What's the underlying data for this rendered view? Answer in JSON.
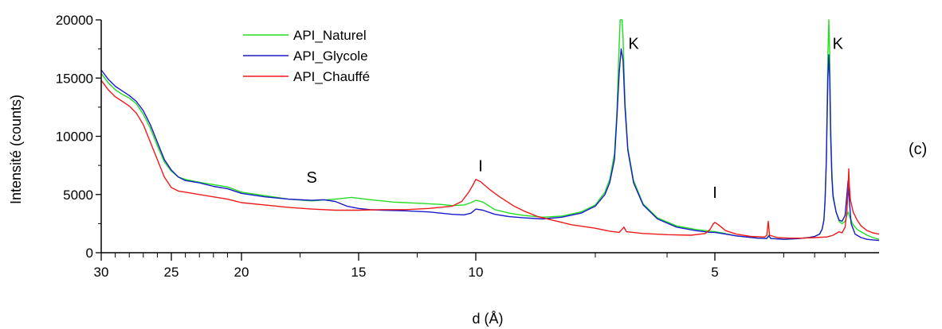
{
  "chart_data": {
    "type": "line",
    "xlabel": "d (Å)",
    "ylabel": "Intensité (counts)",
    "panel_label": "(c)",
    "x_axis": {
      "ticks": [
        30,
        25,
        20,
        15,
        10,
        5
      ],
      "tick_labels": [
        "30",
        "25",
        "20",
        "15",
        "10",
        "5"
      ],
      "reversed": true,
      "range_shown": [
        30,
        1.8
      ]
    },
    "y_axis": {
      "ylim": [
        0,
        20000
      ],
      "ticks": [
        0,
        5000,
        10000,
        15000,
        20000
      ],
      "tick_labels": [
        "0",
        "5000",
        "10000",
        "15000",
        "20000"
      ]
    },
    "grid": false,
    "legend_position": "top-center",
    "series": [
      {
        "name": "API_Naturel",
        "color": "#22dd22",
        "points": [
          [
            30,
            15400
          ],
          [
            29.5,
            14600
          ],
          [
            29,
            14000
          ],
          [
            28.5,
            13600
          ],
          [
            28,
            13300
          ],
          [
            27.5,
            12800
          ],
          [
            27,
            11900
          ],
          [
            26.5,
            10700
          ],
          [
            26,
            9200
          ],
          [
            25.5,
            7800
          ],
          [
            25,
            7000
          ],
          [
            24.5,
            6500
          ],
          [
            24,
            6300
          ],
          [
            23,
            6050
          ],
          [
            22,
            5850
          ],
          [
            21,
            5650
          ],
          [
            20,
            5200
          ],
          [
            19,
            4900
          ],
          [
            18,
            4600
          ],
          [
            17,
            4450
          ],
          [
            16,
            4600
          ],
          [
            15.3,
            4750
          ],
          [
            14.5,
            4550
          ],
          [
            13.5,
            4350
          ],
          [
            12.5,
            4250
          ],
          [
            11.5,
            4150
          ],
          [
            11,
            4050
          ],
          [
            10.5,
            4100
          ],
          [
            10.2,
            4300
          ],
          [
            10,
            4500
          ],
          [
            9.85,
            4350
          ],
          [
            9.6,
            3700
          ],
          [
            9.3,
            3400
          ],
          [
            9,
            3200
          ],
          [
            8.6,
            3050
          ],
          [
            8.2,
            3150
          ],
          [
            7.8,
            3500
          ],
          [
            7.5,
            4100
          ],
          [
            7.3,
            5200
          ],
          [
            7.2,
            6300
          ],
          [
            7.1,
            8500
          ],
          [
            7.05,
            12000
          ],
          [
            7.0,
            18000
          ],
          [
            6.98,
            20000
          ],
          [
            6.94,
            20000
          ],
          [
            6.92,
            18500
          ],
          [
            6.88,
            13000
          ],
          [
            6.82,
            9000
          ],
          [
            6.7,
            6200
          ],
          [
            6.5,
            4200
          ],
          [
            6.2,
            3000
          ],
          [
            5.8,
            2300
          ],
          [
            5.4,
            2000
          ],
          [
            5.1,
            1850
          ],
          [
            5.0,
            1800
          ],
          [
            4.9,
            1700
          ],
          [
            4.7,
            1450
          ],
          [
            4.4,
            1250
          ],
          [
            4.27,
            1220
          ],
          [
            4.24,
            1500
          ],
          [
            4.21,
            1220
          ],
          [
            4.0,
            1150
          ],
          [
            3.8,
            1200
          ],
          [
            3.6,
            1300
          ],
          [
            3.5,
            1400
          ],
          [
            3.42,
            1600
          ],
          [
            3.38,
            2000
          ],
          [
            3.35,
            2800
          ],
          [
            3.33,
            4500
          ],
          [
            3.31,
            8000
          ],
          [
            3.3,
            12000
          ],
          [
            3.285,
            17000
          ],
          [
            3.27,
            20000
          ],
          [
            3.255,
            17000
          ],
          [
            3.24,
            11000
          ],
          [
            3.22,
            7000
          ],
          [
            3.2,
            5000
          ],
          [
            3.15,
            3500
          ],
          [
            3.1,
            2700
          ],
          [
            3.05,
            2500
          ],
          [
            3.0,
            2700
          ],
          [
            2.97,
            3200
          ],
          [
            2.95,
            3500
          ],
          [
            2.92,
            3000
          ],
          [
            2.88,
            2400
          ],
          [
            2.84,
            2000
          ],
          [
            2.8,
            1800
          ],
          [
            2.74,
            1500
          ],
          [
            2.68,
            1300
          ],
          [
            2.62,
            1150
          ]
        ]
      },
      {
        "name": "API_Glycole",
        "color": "#1a1acc",
        "points": [
          [
            30,
            15700
          ],
          [
            29.5,
            14900
          ],
          [
            29,
            14300
          ],
          [
            28.5,
            13900
          ],
          [
            28,
            13500
          ],
          [
            27.5,
            13000
          ],
          [
            27,
            12200
          ],
          [
            26.5,
            11000
          ],
          [
            26,
            9500
          ],
          [
            25.5,
            8000
          ],
          [
            25,
            7100
          ],
          [
            24.5,
            6500
          ],
          [
            24,
            6200
          ],
          [
            23,
            6000
          ],
          [
            22,
            5700
          ],
          [
            21,
            5500
          ],
          [
            20,
            5100
          ],
          [
            19,
            4800
          ],
          [
            18,
            4600
          ],
          [
            17,
            4500
          ],
          [
            16.5,
            4550
          ],
          [
            16,
            4400
          ],
          [
            15.5,
            4000
          ],
          [
            15,
            3800
          ],
          [
            14.5,
            3700
          ],
          [
            14,
            3650
          ],
          [
            13,
            3600
          ],
          [
            12,
            3500
          ],
          [
            11,
            3300
          ],
          [
            10.5,
            3250
          ],
          [
            10.2,
            3400
          ],
          [
            10,
            3750
          ],
          [
            9.85,
            3650
          ],
          [
            9.6,
            3300
          ],
          [
            9.3,
            3100
          ],
          [
            9,
            3000
          ],
          [
            8.6,
            2900
          ],
          [
            8.2,
            3050
          ],
          [
            7.8,
            3400
          ],
          [
            7.5,
            4000
          ],
          [
            7.3,
            5000
          ],
          [
            7.2,
            6000
          ],
          [
            7.1,
            8000
          ],
          [
            7.05,
            11500
          ],
          [
            7.0,
            15500
          ],
          [
            6.96,
            17500
          ],
          [
            6.92,
            16500
          ],
          [
            6.88,
            12500
          ],
          [
            6.82,
            8800
          ],
          [
            6.7,
            6000
          ],
          [
            6.5,
            4100
          ],
          [
            6.2,
            2900
          ],
          [
            5.8,
            2200
          ],
          [
            5.4,
            1900
          ],
          [
            5.1,
            1750
          ],
          [
            5.0,
            1750
          ],
          [
            4.9,
            1650
          ],
          [
            4.7,
            1450
          ],
          [
            4.4,
            1250
          ],
          [
            4.27,
            1220
          ],
          [
            4.24,
            1450
          ],
          [
            4.21,
            1220
          ],
          [
            4.0,
            1150
          ],
          [
            3.8,
            1200
          ],
          [
            3.6,
            1300
          ],
          [
            3.5,
            1400
          ],
          [
            3.42,
            1600
          ],
          [
            3.38,
            2000
          ],
          [
            3.35,
            2800
          ],
          [
            3.33,
            4500
          ],
          [
            3.31,
            8000
          ],
          [
            3.3,
            11000
          ],
          [
            3.285,
            15000
          ],
          [
            3.27,
            17000
          ],
          [
            3.255,
            15000
          ],
          [
            3.24,
            10000
          ],
          [
            3.22,
            6500
          ],
          [
            3.2,
            4800
          ],
          [
            3.15,
            3500
          ],
          [
            3.1,
            2800
          ],
          [
            3.05,
            2700
          ],
          [
            3.0,
            3200
          ],
          [
            2.97,
            5000
          ],
          [
            2.95,
            6200
          ],
          [
            2.93,
            4500
          ],
          [
            2.9,
            2500
          ],
          [
            2.86,
            1600
          ],
          [
            2.8,
            1300
          ],
          [
            2.74,
            1150
          ],
          [
            2.68,
            1100
          ],
          [
            2.62,
            1050
          ]
        ]
      },
      {
        "name": "API_Chauffé",
        "color": "#ee1a1a",
        "points": [
          [
            30,
            14800
          ],
          [
            29.5,
            14000
          ],
          [
            29,
            13400
          ],
          [
            28.5,
            13000
          ],
          [
            28,
            12600
          ],
          [
            27.5,
            12000
          ],
          [
            27,
            11000
          ],
          [
            26.5,
            9500
          ],
          [
            26,
            8000
          ],
          [
            25.5,
            6500
          ],
          [
            25,
            5600
          ],
          [
            24.5,
            5300
          ],
          [
            24,
            5200
          ],
          [
            23,
            5000
          ],
          [
            22,
            4800
          ],
          [
            21,
            4600
          ],
          [
            20,
            4300
          ],
          [
            19,
            4100
          ],
          [
            18,
            3900
          ],
          [
            17,
            3750
          ],
          [
            16,
            3650
          ],
          [
            15,
            3650
          ],
          [
            14,
            3700
          ],
          [
            13,
            3700
          ],
          [
            12,
            3800
          ],
          [
            11,
            4000
          ],
          [
            10.6,
            4400
          ],
          [
            10.3,
            5200
          ],
          [
            10.1,
            5900
          ],
          [
            10,
            6300
          ],
          [
            9.9,
            6100
          ],
          [
            9.7,
            5400
          ],
          [
            9.5,
            4800
          ],
          [
            9.2,
            4000
          ],
          [
            9.0,
            3600
          ],
          [
            8.7,
            3100
          ],
          [
            8.3,
            2700
          ],
          [
            8.0,
            2400
          ],
          [
            7.5,
            2100
          ],
          [
            7.2,
            1850
          ],
          [
            7.0,
            1750
          ],
          [
            6.9,
            2200
          ],
          [
            6.85,
            1800
          ],
          [
            6.5,
            1650
          ],
          [
            6.0,
            1550
          ],
          [
            5.5,
            1500
          ],
          [
            5.2,
            1650
          ],
          [
            5.1,
            2000
          ],
          [
            5.03,
            2500
          ],
          [
            5.0,
            2600
          ],
          [
            4.95,
            2400
          ],
          [
            4.85,
            1900
          ],
          [
            4.7,
            1600
          ],
          [
            4.5,
            1400
          ],
          [
            4.3,
            1350
          ],
          [
            4.27,
            1500
          ],
          [
            4.25,
            2700
          ],
          [
            4.23,
            1500
          ],
          [
            4.1,
            1300
          ],
          [
            3.9,
            1250
          ],
          [
            3.7,
            1250
          ],
          [
            3.5,
            1300
          ],
          [
            3.3,
            1350
          ],
          [
            3.2,
            1500
          ],
          [
            3.1,
            1800
          ],
          [
            3.05,
            1700
          ],
          [
            3.0,
            2200
          ],
          [
            2.97,
            3600
          ],
          [
            2.95,
            5500
          ],
          [
            2.94,
            7200
          ],
          [
            2.93,
            5800
          ],
          [
            2.91,
            4500
          ],
          [
            2.88,
            3500
          ],
          [
            2.84,
            2800
          ],
          [
            2.8,
            2300
          ],
          [
            2.74,
            1900
          ],
          [
            2.68,
            1700
          ],
          [
            2.62,
            1600
          ]
        ]
      }
    ],
    "annotations": [
      {
        "text": "S",
        "x": 17,
        "y": 6000
      },
      {
        "text": "I",
        "x": 9.9,
        "y": 7000
      },
      {
        "text": "K",
        "x": 6.7,
        "y": 17500
      },
      {
        "text": "I",
        "x": 5.0,
        "y": 4700
      },
      {
        "text": "K",
        "x": 3.12,
        "y": 17500
      }
    ]
  }
}
